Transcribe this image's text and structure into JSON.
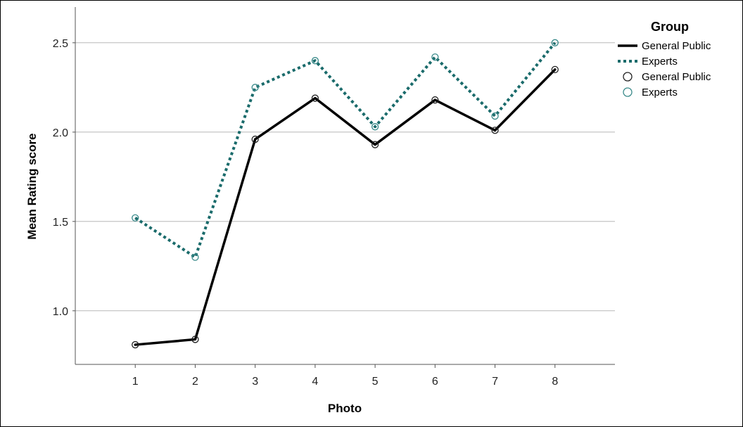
{
  "chart_data": {
    "type": "line",
    "title": "",
    "xlabel": "Photo",
    "ylabel": "Mean Rating score",
    "x": [
      1,
      2,
      3,
      4,
      5,
      6,
      7,
      8
    ],
    "xlim": [
      0,
      9
    ],
    "ylim": [
      0.7,
      2.7
    ],
    "yticks": [
      1.0,
      1.5,
      2.0,
      2.5
    ],
    "ytick_labels": [
      "1.0",
      "1.5",
      "2.0",
      "2.5"
    ],
    "grid": "horizontal",
    "legend_title": "Group",
    "legend_position": "top-right",
    "series": [
      {
        "name": "General Public",
        "style": "solid",
        "color": "#000000",
        "values": [
          0.81,
          0.84,
          1.96,
          2.19,
          1.93,
          2.18,
          2.01,
          2.35
        ]
      },
      {
        "name": "Experts",
        "style": "dotted",
        "color": "#1a6b6b",
        "values": [
          1.52,
          1.3,
          2.25,
          2.4,
          2.03,
          2.42,
          2.09,
          2.5
        ]
      }
    ],
    "legend_entries": [
      {
        "label": "General Public",
        "kind": "line",
        "series": 0
      },
      {
        "label": "Experts",
        "kind": "line",
        "series": 1
      },
      {
        "label": "General Public",
        "kind": "marker",
        "series": 0
      },
      {
        "label": "Experts",
        "kind": "marker",
        "series": 1
      }
    ]
  }
}
